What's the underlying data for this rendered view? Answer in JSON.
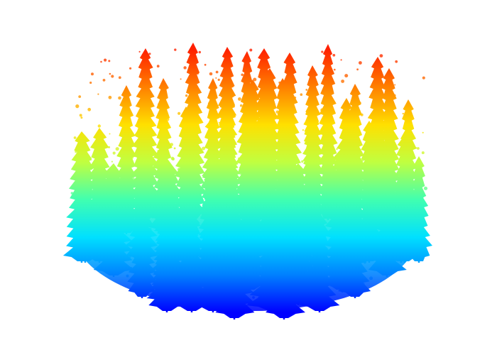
{
  "scene": {
    "subject": "lidar-forest-point-cloud",
    "background_color": "#ffffff",
    "colormap": "jet",
    "colormap_stops": [
      "#0000ff",
      "#0080ff",
      "#00e0ff",
      "#40ffb0",
      "#c0ff40",
      "#ffe000",
      "#ff8000",
      "#ff2000"
    ],
    "color_encodes": "height"
  }
}
